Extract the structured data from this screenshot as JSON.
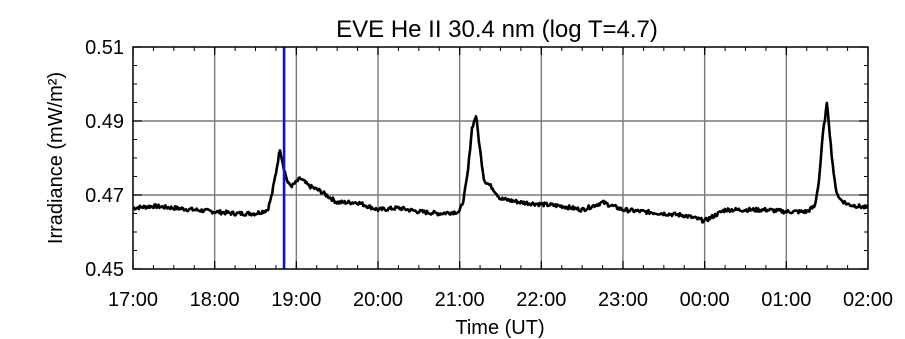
{
  "chart_data": {
    "type": "line",
    "title": "EVE He II 30.4 nm (log T=4.7)",
    "xlabel": "Time (UT)",
    "ylabel": "Irradiance (mW/m²)",
    "x_ticks": [
      "17:00",
      "18:00",
      "19:00",
      "20:00",
      "21:00",
      "22:00",
      "23:00",
      "00:00",
      "01:00",
      "02:00"
    ],
    "y_ticks": [
      "0.45",
      "0.47",
      "0.49",
      "0.51"
    ],
    "xlim_hours": [
      17.0,
      26.0
    ],
    "ylim": [
      0.45,
      0.51
    ],
    "grid": true,
    "series": [
      {
        "color": "#000000",
        "x_hours": [
          17.0,
          17.25,
          17.5,
          17.75,
          18.0,
          18.25,
          18.5,
          18.65,
          18.7,
          18.75,
          18.8,
          18.85,
          18.9,
          18.95,
          19.05,
          19.15,
          19.3,
          19.5,
          19.75,
          20.0,
          20.25,
          20.5,
          20.75,
          21.0,
          21.05,
          21.1,
          21.15,
          21.2,
          21.25,
          21.3,
          21.4,
          21.5,
          21.75,
          22.0,
          22.25,
          22.5,
          22.75,
          23.0,
          23.25,
          23.5,
          23.75,
          24.0,
          24.25,
          24.5,
          24.75,
          25.0,
          25.25,
          25.35,
          25.4,
          25.45,
          25.5,
          25.55,
          25.6,
          25.65,
          25.75,
          26.0
        ],
        "values": [
          0.4665,
          0.467,
          0.4665,
          0.466,
          0.4655,
          0.465,
          0.465,
          0.466,
          0.47,
          0.476,
          0.4825,
          0.477,
          0.473,
          0.4725,
          0.4745,
          0.4725,
          0.471,
          0.468,
          0.468,
          0.466,
          0.4665,
          0.4655,
          0.465,
          0.4655,
          0.469,
          0.476,
          0.488,
          0.4915,
          0.482,
          0.474,
          0.472,
          0.469,
          0.468,
          0.4675,
          0.467,
          0.466,
          0.468,
          0.466,
          0.4655,
          0.465,
          0.4645,
          0.463,
          0.466,
          0.466,
          0.466,
          0.4655,
          0.4655,
          0.467,
          0.474,
          0.487,
          0.495,
          0.482,
          0.472,
          0.469,
          0.4675,
          0.4665
        ]
      }
    ],
    "marker_line": {
      "x_hours": 18.85,
      "color": "#1010d0"
    }
  }
}
